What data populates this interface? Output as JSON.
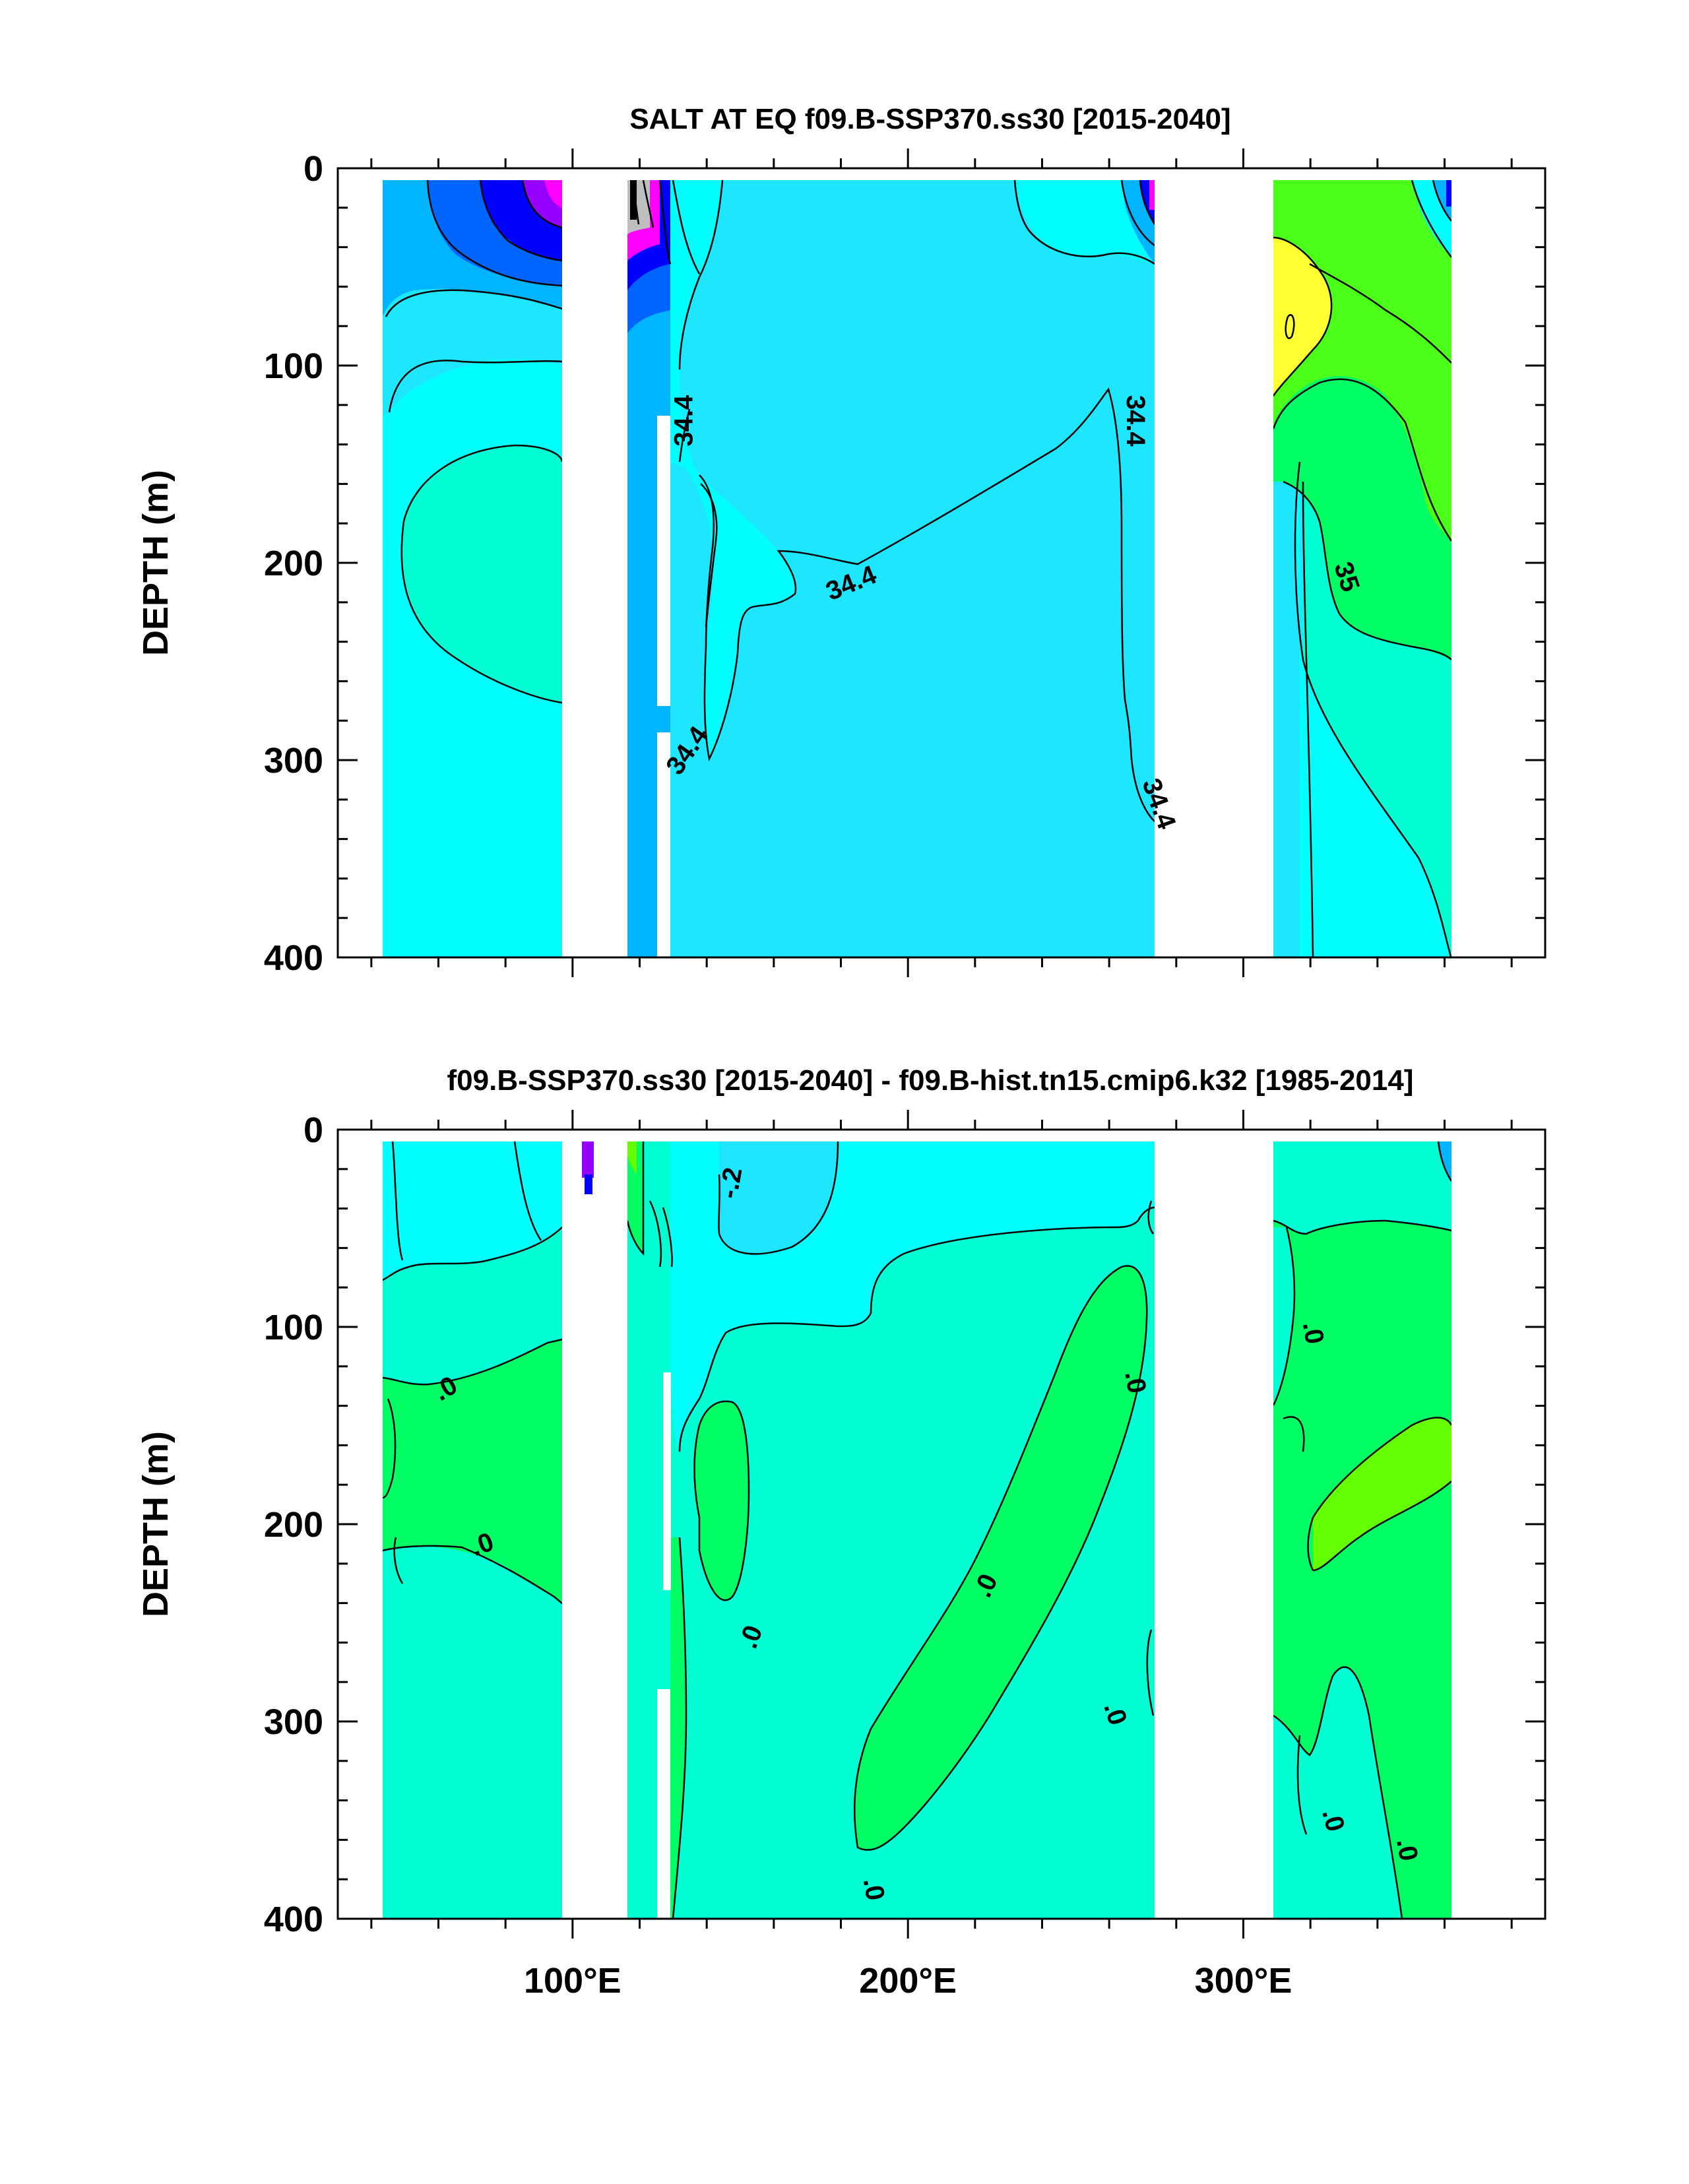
{
  "colors": {
    "c_c1": "#1EE6FF",
    "c_c2": "#00FFFF",
    "c_c3": "#00FFD2",
    "c_c4": "#00B4FF",
    "c_c5": "#0064FF",
    "c_c6": "#0000FF",
    "c_c7": "#9600FF",
    "c_c8": "#FF00FF",
    "c_d1": "#00FFD2",
    "c_d2": "#00FF64",
    "c_d3": "#00FFFF",
    "c_d4": "#1EE6FF",
    "c_d5": "#64FF00",
    "c_yellow": "#FFFF32",
    "c_gray": "#BEBEBE",
    "c_dark": "#000000"
  },
  "chart_data": [
    {
      "type": "contour",
      "title": "SALT AT EQ f09.B-SSP370.ss30 [2015-2040]",
      "xlabel": "",
      "ylabel": "DEPTH (m)",
      "xlim": [
        30,
        390
      ],
      "ylim": [
        400,
        0
      ],
      "x_ticks": [
        100,
        200,
        300
      ],
      "x_tick_labels": [],
      "y_ticks": [
        0,
        100,
        200,
        300,
        400
      ],
      "y_tick_labels": [
        "0",
        "100",
        "200",
        "300",
        "400"
      ],
      "contour_labels": [
        {
          "text": "34.4",
          "lon": 133,
          "depth": 128,
          "rot": -90
        },
        {
          "text": "34.4",
          "lon": 183,
          "depth": 210,
          "rot": -22
        },
        {
          "text": "34.4",
          "lon": 134,
          "depth": 295,
          "rot": -55
        },
        {
          "text": "34.4",
          "lon": 268,
          "depth": 128,
          "rot": 90
        },
        {
          "text": "34.4",
          "lon": 275,
          "depth": 322,
          "rot": 70
        },
        {
          "text": "35",
          "lon": 331,
          "depth": 207,
          "rot": 72
        }
      ]
    },
    {
      "type": "contour",
      "title": "f09.B-SSP370.ss30 [2015-2040] - f09.B-hist.tn15.cmip6.k32 [1985-2014]",
      "xlabel": "",
      "ylabel": "DEPTH (m)",
      "xlim": [
        30,
        390
      ],
      "ylim": [
        400,
        0
      ],
      "x_ticks": [
        100,
        200,
        300
      ],
      "x_tick_labels": [
        "100°E",
        "200°E",
        "300°E"
      ],
      "y_ticks": [
        0,
        100,
        200,
        300,
        400
      ],
      "y_tick_labels": [
        "0",
        "100",
        "200",
        "300",
        "400"
      ],
      "contour_labels": [
        {
          "text": "-.2",
          "lon": 147,
          "depth": 27,
          "rot": -80
        },
        {
          "text": ".0",
          "lon": 321,
          "depth": 103,
          "rot": 80
        },
        {
          "text": ".0",
          "lon": 62,
          "depth": 131,
          "rot": -30
        },
        {
          "text": ".0",
          "lon": 268,
          "depth": 128,
          "rot": 80
        },
        {
          "text": ".0",
          "lon": 73,
          "depth": 210,
          "rot": -20
        },
        {
          "text": ".0",
          "lon": 223,
          "depth": 231,
          "rot": -65
        },
        {
          "text": ".0",
          "lon": 153,
          "depth": 257,
          "rot": -70
        },
        {
          "text": ".0",
          "lon": 262,
          "depth": 296,
          "rot": 72
        },
        {
          "text": ".0",
          "lon": 327,
          "depth": 350,
          "rot": 75
        },
        {
          "text": ".0",
          "lon": 349,
          "depth": 365,
          "rot": 80
        },
        {
          "text": ".0",
          "lon": 190,
          "depth": 385,
          "rot": 80
        }
      ]
    }
  ]
}
